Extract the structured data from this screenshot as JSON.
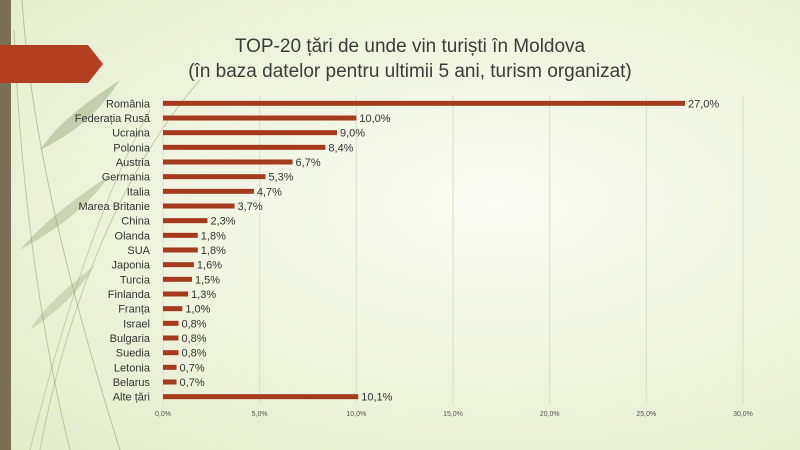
{
  "chart_data": {
    "type": "bar",
    "orientation": "horizontal",
    "title_line1": "TOP-20 țări de unde vin turiști în Moldova",
    "title_line2": "(în baza datelor pentru ultimii 5 ani, turism organizat)",
    "categories": [
      "România",
      "Federația Rusă",
      "Ucraina",
      "Polonia",
      "Austria",
      "Germania",
      "Italia",
      "Marea Britanie",
      "China",
      "Olanda",
      "SUA",
      "Japonia",
      "Turcia",
      "Finlanda",
      "Franța",
      "Israel",
      "Bulgaria",
      "Suedia",
      "Letonia",
      "Belarus",
      "Alte țări"
    ],
    "values": [
      27.0,
      10.0,
      9.0,
      8.4,
      6.7,
      5.3,
      4.7,
      3.7,
      2.3,
      1.8,
      1.8,
      1.6,
      1.5,
      1.3,
      1.0,
      0.8,
      0.8,
      0.8,
      0.7,
      0.7,
      10.1
    ],
    "value_labels": [
      "27,0%",
      "10,0%",
      "9,0%",
      "8,4%",
      "6,7%",
      "5,3%",
      "4,7%",
      "3,7%",
      "2,3%",
      "1,8%",
      "1,8%",
      "1,6%",
      "1,5%",
      "1,3%",
      "1,0%",
      "0,8%",
      "0,8%",
      "0,8%",
      "0,7%",
      "0,7%",
      "10,1%"
    ],
    "xlim": [
      0,
      30
    ],
    "x_ticks": [
      0,
      5,
      10,
      15,
      20,
      25,
      30
    ],
    "x_tick_labels": [
      "0,0%",
      "5,0%",
      "10,0%",
      "15,0%",
      "20,0%",
      "25,0%",
      "30,0%"
    ],
    "grid": true,
    "bar_color": "#a63a1c",
    "grid_color": "#d9dfc8"
  },
  "theme": {
    "accent": "#b33f20",
    "strip_color": "#7a7053"
  }
}
